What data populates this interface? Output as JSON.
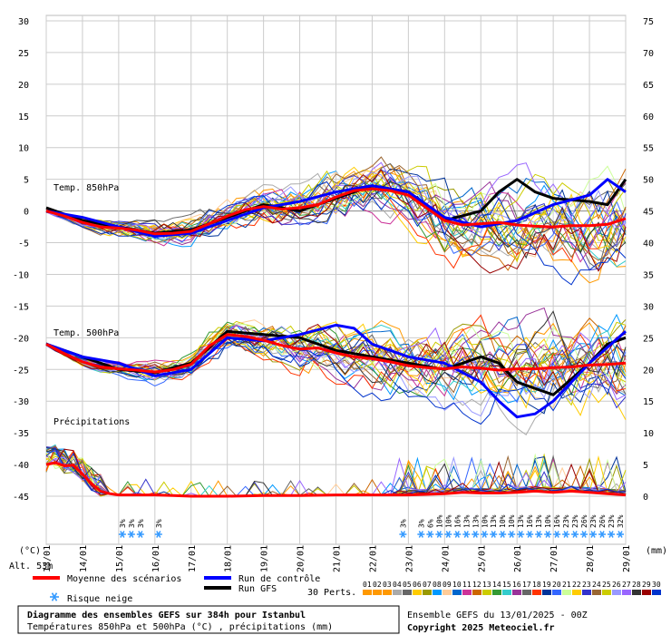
{
  "chart_data": {
    "type": "line",
    "left_axis": {
      "unit_label": "(°C)",
      "ticks": [
        30,
        25,
        20,
        15,
        10,
        5,
        0,
        -5,
        -10,
        -15,
        -20,
        -25,
        -30,
        -35,
        -40,
        -45
      ],
      "range": [
        -45,
        30
      ]
    },
    "right_axis": {
      "unit_label": "(mm)",
      "ticks": [
        75,
        70,
        65,
        60,
        55,
        50,
        45,
        40,
        35,
        30,
        25,
        20,
        15,
        10,
        5,
        0
      ],
      "range": [
        0,
        75
      ]
    },
    "x_axis": {
      "ticks": [
        "13/01",
        "14/01",
        "15/01",
        "16/01",
        "17/01",
        "18/01",
        "19/01",
        "20/01",
        "21/01",
        "22/01",
        "23/01",
        "24/01",
        "25/01",
        "26/01",
        "27/01",
        "28/01",
        "29/01"
      ],
      "grid": true
    },
    "panel_labels": {
      "t850": "Temp. 850hPa",
      "t500": "Temp. 500hPa",
      "precip": "Précipitations"
    },
    "altitude": "Alt. 53m",
    "snow_risk": {
      "days": [
        2.0,
        2.25,
        2.5,
        3.0,
        9.75,
        10.25,
        10.5,
        10.75,
        11.0,
        11.25,
        11.5,
        11.75,
        12.0,
        12.25,
        12.5,
        12.75,
        13.0,
        13.25,
        13.5,
        13.75,
        14.0,
        14.25,
        14.5,
        14.75,
        15.0,
        15.25,
        15.5,
        15.75
      ],
      "labels": [
        "3%",
        "3%",
        "3%",
        "3%",
        "3%",
        "3%",
        "6%",
        "10%",
        "10%",
        "16%",
        "13%",
        "13%",
        "10%",
        "13%",
        "10%",
        "10%",
        "13%",
        "16%",
        "13%",
        "10%",
        "16%",
        "23%",
        "23%",
        "26%",
        "23%",
        "26%",
        "23%",
        "32%"
      ]
    },
    "series": [
      {
        "name": "Moyenne des scénarios",
        "kind": "t850",
        "color": "#ff0000",
        "x": [
          0,
          0.5,
          1,
          1.5,
          2,
          2.5,
          3,
          3.5,
          4,
          4.5,
          5,
          5.5,
          6,
          6.5,
          7,
          7.5,
          8,
          8.5,
          9,
          9.5,
          10,
          10.5,
          11,
          11.5,
          12,
          12.5,
          13,
          13.5,
          14,
          14.5,
          15,
          15.5,
          16
        ],
        "y": [
          0,
          -0.8,
          -1.8,
          -2.5,
          -2.7,
          -3.0,
          -3.6,
          -3.5,
          -3.2,
          -2.0,
          -0.8,
          0.2,
          0.7,
          0.3,
          0.5,
          1.0,
          2.2,
          3.2,
          3.5,
          3.2,
          2.5,
          0.5,
          -1.5,
          -2.2,
          -2.0,
          -1.8,
          -2.2,
          -2.4,
          -2.5,
          -2.3,
          -2.3,
          -2.1,
          -1.2
        ]
      },
      {
        "name": "Moyenne des scénarios",
        "kind": "t500",
        "color": "#ff0000",
        "x": [
          0,
          0.5,
          1,
          1.5,
          2,
          2.5,
          3,
          3.5,
          4,
          4.5,
          5,
          5.5,
          6,
          6.5,
          7,
          7.5,
          8,
          8.5,
          9,
          9.5,
          10,
          10.5,
          11,
          11.5,
          12,
          12.5,
          13,
          13.5,
          14,
          14.5,
          15,
          15.5,
          16
        ],
        "y": [
          -21,
          -22.5,
          -23.8,
          -24.6,
          -24.9,
          -25.1,
          -25.4,
          -25.0,
          -24.2,
          -21.3,
          -19.5,
          -19.8,
          -20.4,
          -21.2,
          -21.8,
          -21.6,
          -22.4,
          -23.0,
          -23.3,
          -23.8,
          -24.4,
          -24.7,
          -24.9,
          -24.6,
          -24.8,
          -25.1,
          -24.9,
          -24.9,
          -24.7,
          -24.6,
          -24.3,
          -24.2,
          -24.0
        ]
      },
      {
        "name": "Moyenne des scénarios",
        "kind": "precip",
        "color": "#ff0000",
        "x": [
          0,
          0.25,
          0.5,
          0.75,
          1,
          1.25,
          1.5,
          1.75,
          2,
          2.5,
          3,
          3.5,
          4,
          5,
          6,
          7,
          8,
          9,
          10,
          11,
          11.5,
          12,
          12.5,
          13,
          13.5,
          14,
          14.5,
          15,
          15.5,
          16
        ],
        "y": [
          5.0,
          5.3,
          4.8,
          4.9,
          3.5,
          2.0,
          0.8,
          0.4,
          0.2,
          0.2,
          0.2,
          0.1,
          0,
          0,
          0.1,
          0.1,
          0.2,
          0.2,
          0.2,
          0.4,
          0.6,
          0.5,
          0.5,
          0.6,
          0.8,
          0.6,
          0.8,
          0.6,
          0.4,
          0.2
        ]
      },
      {
        "name": "Run de contrôle",
        "kind": "t850",
        "color": "#0000ff",
        "x": [
          0,
          1,
          2,
          3,
          4,
          5,
          6,
          7,
          8,
          9,
          10,
          11,
          12,
          13,
          14,
          15,
          15.5,
          16
        ],
        "y": [
          0,
          -1,
          -2.5,
          -4,
          -3.5,
          -1.5,
          0.5,
          1.5,
          3,
          4,
          3,
          -1,
          -2.5,
          -1.5,
          1,
          2.5,
          5,
          3
        ]
      },
      {
        "name": "Run de contrôle",
        "kind": "t500",
        "color": "#0000ff",
        "x": [
          0,
          1,
          2,
          3,
          4,
          5,
          6,
          7,
          8,
          8.5,
          9,
          10,
          11,
          12,
          12.5,
          13,
          13.5,
          14,
          15,
          16
        ],
        "y": [
          -21,
          -23,
          -24,
          -26,
          -25,
          -20,
          -20.5,
          -19.5,
          -18,
          -18.5,
          -21,
          -23,
          -24,
          -27,
          -30,
          -32.5,
          -32,
          -30,
          -24,
          -19
        ]
      },
      {
        "name": "Run GFS",
        "kind": "t850",
        "color": "#000000",
        "x": [
          0,
          1,
          2,
          3,
          4,
          5,
          6,
          7,
          8,
          9,
          10,
          11,
          12,
          12.5,
          13,
          13.5,
          14,
          15,
          15.5,
          16
        ],
        "y": [
          0.5,
          -1.5,
          -2.5,
          -3.5,
          -3,
          -1,
          1,
          0,
          2,
          4,
          3,
          -1.5,
          0,
          3,
          5,
          3,
          2,
          1.5,
          1,
          5
        ]
      },
      {
        "name": "Run GFS",
        "kind": "t500",
        "color": "#000000",
        "x": [
          0,
          1,
          2,
          3,
          4,
          5,
          6,
          7,
          8,
          9,
          10,
          11,
          12,
          12.5,
          13,
          14,
          15,
          15.5,
          16
        ],
        "y": [
          -21,
          -23,
          -25,
          -25.5,
          -24,
          -19,
          -19.5,
          -20,
          -22,
          -23,
          -24,
          -25,
          -23,
          -24,
          -27,
          -29,
          -24,
          -21,
          -20
        ]
      }
    ],
    "perturbations": {
      "count": 30,
      "colors": [
        "#ff9900",
        "#ff9900",
        "#ff9900",
        "#aaaaaa",
        "#666666",
        "#ffcc00",
        "#999900",
        "#0099ff",
        "#ffcc99",
        "#0066cc",
        "#cc3399",
        "#cc6600",
        "#cccc00",
        "#339933",
        "#33cccc",
        "#993399",
        "#666666",
        "#ff3300",
        "#003399",
        "#3366ff",
        "#ccff99",
        "#ffcc00",
        "#3333cc",
        "#996633",
        "#cccc00",
        "#9999ff",
        "#9966ff",
        "#333333",
        "#990000",
        "#0033cc"
      ]
    }
  },
  "legend": {
    "mean_label": "Moyenne des scénarios",
    "control_label": "Run de contrôle",
    "gfs_label": "Run GFS",
    "snow_label": "Risque neige",
    "perts_label": "30 Perts.",
    "pert_numbers": [
      "01",
      "02",
      "03",
      "04",
      "05",
      "06",
      "07",
      "08",
      "09",
      "10",
      "11",
      "12",
      "13",
      "14",
      "15",
      "16",
      "17",
      "18",
      "19",
      "20",
      "21",
      "22",
      "23",
      "24",
      "25",
      "26",
      "27",
      "28",
      "29",
      "30"
    ],
    "mean_color": "#ff0000",
    "control_color": "#0000ff",
    "gfs_color": "#000000"
  },
  "footer": {
    "title": "Diagramme des ensembles GEFS sur 384h pour Istanbul",
    "subtitle": "Températures 850hPa et 500hPa (°C) , précipitations (mm)",
    "run": "Ensemble GEFS du 13/01/2025 - 00Z",
    "copyright": "Copyright 2025 Meteociel.fr"
  }
}
